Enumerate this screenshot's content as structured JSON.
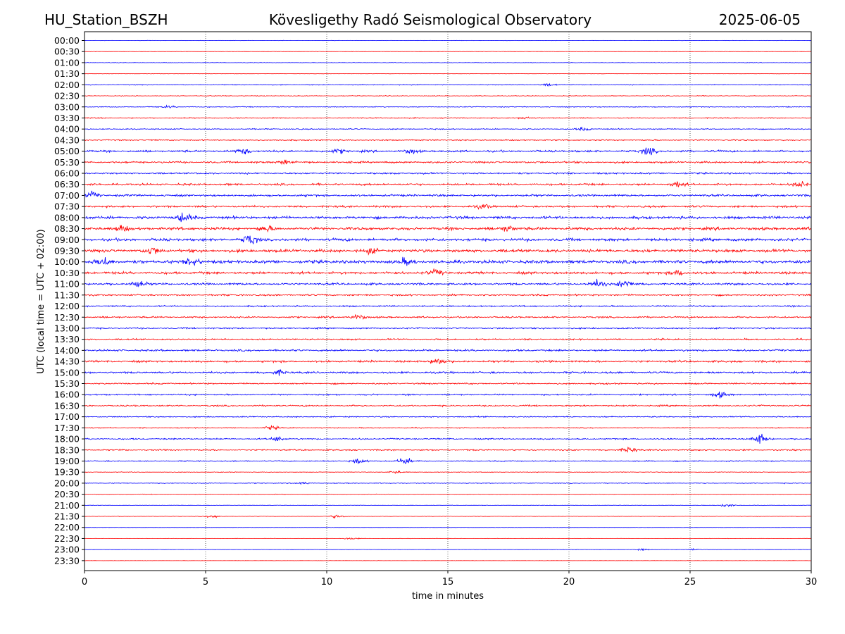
{
  "header": {
    "station": "HU_Station_BSZH",
    "title": "Kövesligethy Radó Seismological Observatory",
    "date": "2025-06-05"
  },
  "chart_data": {
    "type": "line",
    "subtype": "helicorder",
    "xlabel": "time in minutes",
    "ylabel": "UTC (local time = UTC + 02:00)",
    "xlim": [
      0,
      30
    ],
    "x_ticks": [
      0,
      5,
      10,
      15,
      20,
      25,
      30
    ],
    "grid": "vertical dotted lines at x ticks",
    "colors": [
      "#0000ff",
      "#ff0000"
    ],
    "rows": [
      {
        "label": "00:00",
        "color": "#0000ff",
        "amp": 0.05
      },
      {
        "label": "00:30",
        "color": "#ff0000",
        "amp": 0.06
      },
      {
        "label": "01:00",
        "color": "#0000ff",
        "amp": 0.07
      },
      {
        "label": "01:30",
        "color": "#ff0000",
        "amp": 0.05
      },
      {
        "label": "02:00",
        "color": "#0000ff",
        "amp": 0.12
      },
      {
        "label": "02:30",
        "color": "#ff0000",
        "amp": 0.1
      },
      {
        "label": "03:00",
        "color": "#0000ff",
        "amp": 0.13
      },
      {
        "label": "03:30",
        "color": "#ff0000",
        "amp": 0.15
      },
      {
        "label": "04:00",
        "color": "#0000ff",
        "amp": 0.16
      },
      {
        "label": "04:30",
        "color": "#ff0000",
        "amp": 0.18
      },
      {
        "label": "05:00",
        "color": "#0000ff",
        "amp": 0.3
      },
      {
        "label": "05:30",
        "color": "#ff0000",
        "amp": 0.28
      },
      {
        "label": "06:00",
        "color": "#0000ff",
        "amp": 0.25
      },
      {
        "label": "06:30",
        "color": "#ff0000",
        "amp": 0.3
      },
      {
        "label": "07:00",
        "color": "#0000ff",
        "amp": 0.32
      },
      {
        "label": "07:30",
        "color": "#ff0000",
        "amp": 0.3
      },
      {
        "label": "08:00",
        "color": "#0000ff",
        "amp": 0.4
      },
      {
        "label": "08:30",
        "color": "#ff0000",
        "amp": 0.42
      },
      {
        "label": "09:00",
        "color": "#0000ff",
        "amp": 0.42
      },
      {
        "label": "09:30",
        "color": "#ff0000",
        "amp": 0.45
      },
      {
        "label": "10:00",
        "color": "#0000ff",
        "amp": 0.48
      },
      {
        "label": "10:30",
        "color": "#ff0000",
        "amp": 0.38
      },
      {
        "label": "11:00",
        "color": "#0000ff",
        "amp": 0.32
      },
      {
        "label": "11:30",
        "color": "#ff0000",
        "amp": 0.25
      },
      {
        "label": "12:00",
        "color": "#0000ff",
        "amp": 0.22
      },
      {
        "label": "12:30",
        "color": "#ff0000",
        "amp": 0.25
      },
      {
        "label": "13:00",
        "color": "#0000ff",
        "amp": 0.22
      },
      {
        "label": "13:30",
        "color": "#ff0000",
        "amp": 0.22
      },
      {
        "label": "14:00",
        "color": "#0000ff",
        "amp": 0.28
      },
      {
        "label": "14:30",
        "color": "#ff0000",
        "amp": 0.3
      },
      {
        "label": "15:00",
        "color": "#0000ff",
        "amp": 0.28
      },
      {
        "label": "15:30",
        "color": "#ff0000",
        "amp": 0.22
      },
      {
        "label": "16:00",
        "color": "#0000ff",
        "amp": 0.22
      },
      {
        "label": "16:30",
        "color": "#ff0000",
        "amp": 0.22
      },
      {
        "label": "17:00",
        "color": "#0000ff",
        "amp": 0.18
      },
      {
        "label": "17:30",
        "color": "#ff0000",
        "amp": 0.15
      },
      {
        "label": "18:00",
        "color": "#0000ff",
        "amp": 0.2
      },
      {
        "label": "18:30",
        "color": "#ff0000",
        "amp": 0.2
      },
      {
        "label": "19:00",
        "color": "#0000ff",
        "amp": 0.16
      },
      {
        "label": "19:30",
        "color": "#ff0000",
        "amp": 0.1
      },
      {
        "label": "20:00",
        "color": "#0000ff",
        "amp": 0.12
      },
      {
        "label": "20:30",
        "color": "#ff0000",
        "amp": 0.07
      },
      {
        "label": "21:00",
        "color": "#0000ff",
        "amp": 0.06
      },
      {
        "label": "21:30",
        "color": "#ff0000",
        "amp": 0.06
      },
      {
        "label": "22:00",
        "color": "#0000ff",
        "amp": 0.04
      },
      {
        "label": "22:30",
        "color": "#ff0000",
        "amp": 0.05
      },
      {
        "label": "23:00",
        "color": "#0000ff",
        "amp": 0.05
      },
      {
        "label": "23:30",
        "color": "#ff0000",
        "amp": 0.04
      }
    ],
    "bursts": [
      {
        "row": "02:00",
        "x": 19.2,
        "amp": 0.35
      },
      {
        "row": "03:00",
        "x": 3.5,
        "amp": 0.3
      },
      {
        "row": "03:30",
        "x": 18.2,
        "amp": 0.35
      },
      {
        "row": "04:00",
        "x": 20.6,
        "amp": 0.4
      },
      {
        "row": "05:00",
        "x": 6.6,
        "amp": 0.7
      },
      {
        "row": "05:00",
        "x": 10.5,
        "amp": 0.55
      },
      {
        "row": "05:00",
        "x": 13.5,
        "amp": 0.55
      },
      {
        "row": "05:00",
        "x": 23.3,
        "amp": 1.0
      },
      {
        "row": "05:30",
        "x": 8.3,
        "amp": 0.6
      },
      {
        "row": "06:30",
        "x": 24.5,
        "amp": 0.7
      },
      {
        "row": "06:30",
        "x": 29.5,
        "amp": 0.8
      },
      {
        "row": "07:00",
        "x": 0.3,
        "amp": 0.8
      },
      {
        "row": "07:30",
        "x": 16.5,
        "amp": 0.6
      },
      {
        "row": "08:00",
        "x": 4.1,
        "amp": 1.2
      },
      {
        "row": "08:30",
        "x": 1.5,
        "amp": 0.8
      },
      {
        "row": "08:30",
        "x": 7.5,
        "amp": 0.7
      },
      {
        "row": "08:30",
        "x": 17.5,
        "amp": 0.7
      },
      {
        "row": "09:00",
        "x": 6.8,
        "amp": 1.3
      },
      {
        "row": "09:30",
        "x": 2.8,
        "amp": 1.0
      },
      {
        "row": "09:30",
        "x": 11.8,
        "amp": 0.6
      },
      {
        "row": "10:00",
        "x": 0.8,
        "amp": 1.2
      },
      {
        "row": "10:00",
        "x": 4.5,
        "amp": 1.0
      },
      {
        "row": "10:00",
        "x": 13.3,
        "amp": 0.8
      },
      {
        "row": "10:30",
        "x": 14.5,
        "amp": 0.7
      },
      {
        "row": "10:30",
        "x": 24.5,
        "amp": 0.7
      },
      {
        "row": "11:00",
        "x": 2.2,
        "amp": 0.9
      },
      {
        "row": "11:00",
        "x": 21.2,
        "amp": 1.0
      },
      {
        "row": "11:00",
        "x": 22.3,
        "amp": 1.1
      },
      {
        "row": "12:30",
        "x": 11.3,
        "amp": 0.7
      },
      {
        "row": "14:30",
        "x": 14.6,
        "amp": 1.0
      },
      {
        "row": "15:00",
        "x": 8.0,
        "amp": 0.6
      },
      {
        "row": "16:00",
        "x": 26.2,
        "amp": 0.8
      },
      {
        "row": "17:30",
        "x": 7.7,
        "amp": 0.5
      },
      {
        "row": "18:00",
        "x": 8.0,
        "amp": 0.6
      },
      {
        "row": "18:00",
        "x": 27.9,
        "amp": 1.4
      },
      {
        "row": "18:30",
        "x": 22.5,
        "amp": 0.7
      },
      {
        "row": "19:00",
        "x": 11.3,
        "amp": 0.7
      },
      {
        "row": "19:00",
        "x": 13.2,
        "amp": 0.9
      },
      {
        "row": "19:30",
        "x": 12.8,
        "amp": 0.4
      },
      {
        "row": "20:00",
        "x": 9.0,
        "amp": 0.3
      },
      {
        "row": "21:00",
        "x": 26.5,
        "amp": 0.4
      },
      {
        "row": "21:30",
        "x": 10.4,
        "amp": 0.5
      },
      {
        "row": "21:30",
        "x": 5.3,
        "amp": 0.4
      },
      {
        "row": "22:30",
        "x": 11.0,
        "amp": 0.3
      },
      {
        "row": "23:00",
        "x": 23.0,
        "amp": 0.3
      },
      {
        "row": "23:00",
        "x": 25.2,
        "amp": 0.25
      }
    ]
  }
}
